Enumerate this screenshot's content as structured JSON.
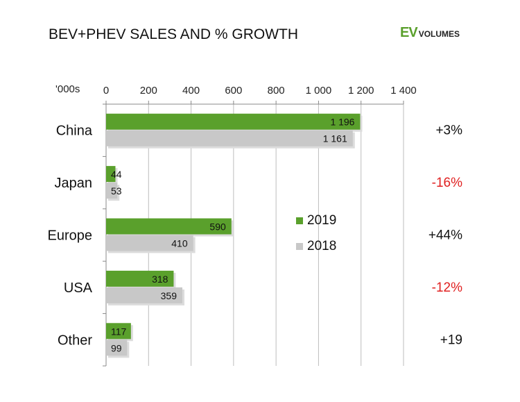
{
  "title": "BEV+PHEV SALES AND % GROWTH",
  "logo": {
    "ev": "EV",
    "volumes": "VOLUMES"
  },
  "chart_data": {
    "type": "bar",
    "orientation": "horizontal",
    "unit_label": "'000s",
    "categories": [
      "China",
      "Japan",
      "Europe",
      "USA",
      "Other"
    ],
    "series": [
      {
        "name": "2019",
        "values": [
          1196,
          44,
          590,
          318,
          117
        ],
        "labels": [
          "1 196",
          "44",
          "590",
          "318",
          "117"
        ],
        "color": "#5aa02c"
      },
      {
        "name": "2018",
        "values": [
          1161,
          53,
          410,
          359,
          99
        ],
        "labels": [
          "1 161",
          "53",
          "410",
          "359",
          "99"
        ],
        "color": "#c8c8c8"
      }
    ],
    "xlim": [
      0,
      1400
    ],
    "ticks": [
      "0",
      "200",
      "400",
      "600",
      "800",
      "1 000",
      "1 200",
      "1 400"
    ],
    "tick_values": [
      0,
      200,
      400,
      600,
      800,
      1000,
      1200,
      1400
    ],
    "grid": true,
    "legend_position": "center-right",
    "growth": [
      {
        "text": "+3%",
        "color": "#111111"
      },
      {
        "text": "-16%",
        "color": "#e02020"
      },
      {
        "text": "+44%",
        "color": "#111111"
      },
      {
        "text": "-12%",
        "color": "#e02020"
      },
      {
        "text": "+19",
        "color": "#111111"
      }
    ]
  }
}
